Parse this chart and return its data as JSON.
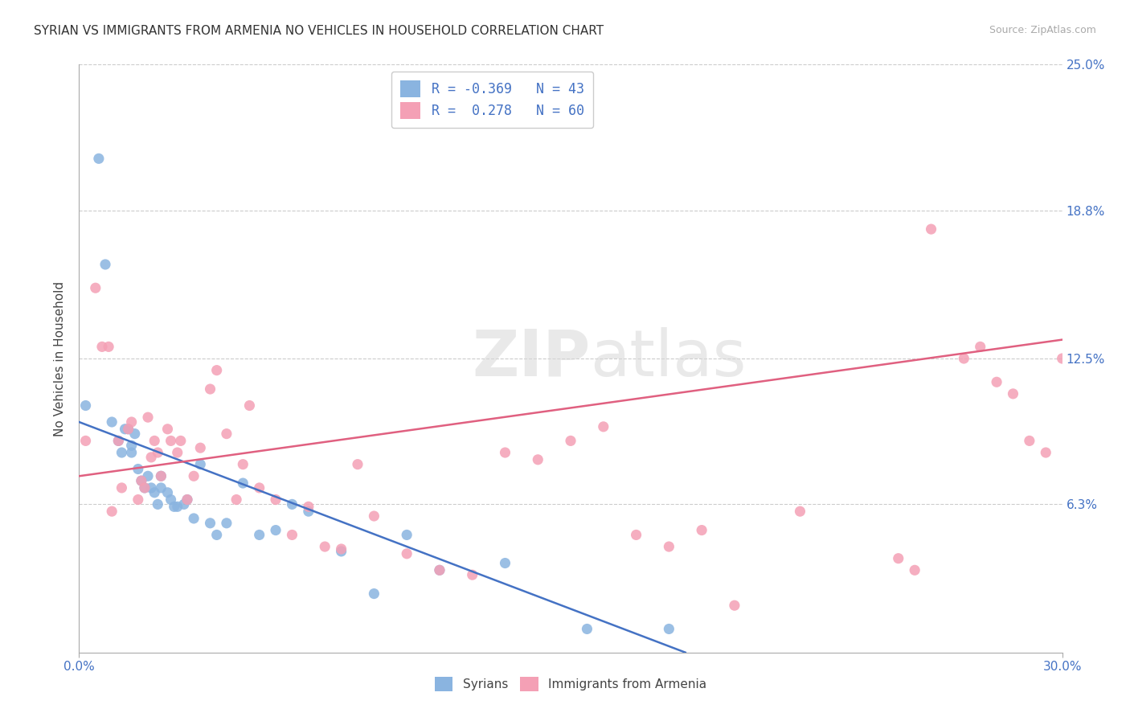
{
  "title": "SYRIAN VS IMMIGRANTS FROM ARMENIA NO VEHICLES IN HOUSEHOLD CORRELATION CHART",
  "source": "Source: ZipAtlas.com",
  "ylabel": "No Vehicles in Household",
  "xlim": [
    0.0,
    0.3
  ],
  "ylim": [
    0.0,
    0.25
  ],
  "ytick_vals": [
    0.063,
    0.125,
    0.188,
    0.25
  ],
  "ytick_labels": [
    "6.3%",
    "12.5%",
    "18.8%",
    "25.0%"
  ],
  "xtick_vals": [
    0.0,
    0.3
  ],
  "xtick_labels": [
    "0.0%",
    "30.0%"
  ],
  "legend_line1": "R = -0.369   N = 43",
  "legend_line2": "R =  0.278   N = 60",
  "color_syrians": "#8ab4e0",
  "color_armenia": "#f4a0b5",
  "color_blue_text": "#4472c4",
  "color_pink_line": "#e06080",
  "syrians_scatter_x": [
    0.002,
    0.006,
    0.008,
    0.01,
    0.012,
    0.013,
    0.014,
    0.015,
    0.016,
    0.016,
    0.017,
    0.018,
    0.019,
    0.02,
    0.021,
    0.022,
    0.023,
    0.024,
    0.025,
    0.025,
    0.027,
    0.028,
    0.029,
    0.03,
    0.032,
    0.033,
    0.035,
    0.037,
    0.04,
    0.042,
    0.045,
    0.05,
    0.055,
    0.06,
    0.065,
    0.07,
    0.08,
    0.09,
    0.1,
    0.11,
    0.13,
    0.155,
    0.18
  ],
  "syrians_scatter_y": [
    0.105,
    0.21,
    0.165,
    0.098,
    0.09,
    0.085,
    0.095,
    0.095,
    0.088,
    0.085,
    0.093,
    0.078,
    0.073,
    0.07,
    0.075,
    0.07,
    0.068,
    0.063,
    0.075,
    0.07,
    0.068,
    0.065,
    0.062,
    0.062,
    0.063,
    0.065,
    0.057,
    0.08,
    0.055,
    0.05,
    0.055,
    0.072,
    0.05,
    0.052,
    0.063,
    0.06,
    0.043,
    0.025,
    0.05,
    0.035,
    0.038,
    0.01,
    0.01
  ],
  "armenia_scatter_x": [
    0.002,
    0.005,
    0.007,
    0.009,
    0.01,
    0.012,
    0.013,
    0.015,
    0.016,
    0.018,
    0.019,
    0.02,
    0.021,
    0.022,
    0.023,
    0.024,
    0.025,
    0.027,
    0.028,
    0.03,
    0.031,
    0.033,
    0.035,
    0.037,
    0.04,
    0.042,
    0.045,
    0.048,
    0.05,
    0.052,
    0.055,
    0.06,
    0.065,
    0.07,
    0.075,
    0.08,
    0.085,
    0.09,
    0.1,
    0.11,
    0.12,
    0.13,
    0.14,
    0.15,
    0.16,
    0.17,
    0.18,
    0.19,
    0.2,
    0.22,
    0.25,
    0.255,
    0.26,
    0.27,
    0.275,
    0.28,
    0.285,
    0.29,
    0.295,
    0.3
  ],
  "armenia_scatter_y": [
    0.09,
    0.155,
    0.13,
    0.13,
    0.06,
    0.09,
    0.07,
    0.095,
    0.098,
    0.065,
    0.073,
    0.07,
    0.1,
    0.083,
    0.09,
    0.085,
    0.075,
    0.095,
    0.09,
    0.085,
    0.09,
    0.065,
    0.075,
    0.087,
    0.112,
    0.12,
    0.093,
    0.065,
    0.08,
    0.105,
    0.07,
    0.065,
    0.05,
    0.062,
    0.045,
    0.044,
    0.08,
    0.058,
    0.042,
    0.035,
    0.033,
    0.085,
    0.082,
    0.09,
    0.096,
    0.05,
    0.045,
    0.052,
    0.02,
    0.06,
    0.04,
    0.035,
    0.18,
    0.125,
    0.13,
    0.115,
    0.11,
    0.09,
    0.085,
    0.125
  ],
  "syrians_line_x": [
    0.0,
    0.185
  ],
  "syrians_line_y": [
    0.098,
    0.0
  ],
  "armenia_line_x": [
    0.0,
    0.3
  ],
  "armenia_line_y": [
    0.075,
    0.133
  ],
  "background_color": "#ffffff",
  "grid_color": "#cccccc",
  "watermark_zip": "ZIP",
  "watermark_atlas": "atlas"
}
